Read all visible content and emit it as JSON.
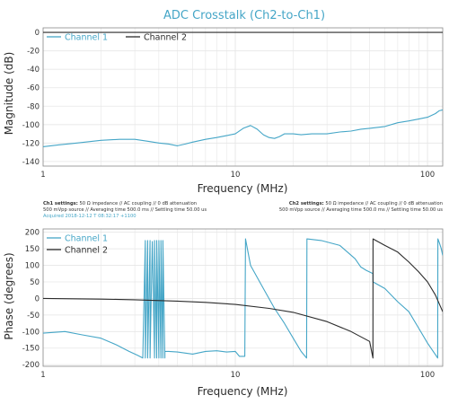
{
  "colors": {
    "channel1": "#45a6c7",
    "channel2": "#2b2b2b",
    "grid": "#e6e6e6",
    "axis": "#8a8a8a",
    "title": "#45a6c7"
  },
  "settings": {
    "ch1_label": "Ch1 settings:",
    "ch1_line1": "50 Ω impedance  //  AC coupling  //  0 dB attenuation",
    "ch1_line2": "500 mVpp source  //  Averaging time 500.0 ms  //  Settling time 50.00 us",
    "ch1_line3": "Acquired 2018-12-12 T 08:32:17 +1100",
    "ch2_label": "Ch2 settings:",
    "ch2_line1": "50 Ω impedance  //  AC coupling  //  0 dB attenuation",
    "ch2_line2": "500 mVpp source  //  Averaging time 500.0 ms  //  Settling time 50.00 us"
  },
  "chart_data": [
    {
      "type": "line",
      "title": "ADC Crosstalk (Ch2-to-Ch1)",
      "xlabel": "Frequency (MHz)",
      "ylabel": "Magnitude (dB)",
      "xscale": "log",
      "xlim": [
        1,
        120
      ],
      "ylim": [
        -145,
        5
      ],
      "xticks": [
        1,
        10,
        100
      ],
      "xtick_labels": [
        "1",
        "10",
        "100"
      ],
      "yticks": [
        0,
        -20,
        -40,
        -60,
        -80,
        -100,
        -120,
        -140
      ],
      "ytick_labels": [
        "0",
        "-20",
        "-40",
        "-60",
        "-80",
        "-100",
        "-120",
        "-140"
      ],
      "grid": true,
      "legend_position": "top-left",
      "series": [
        {
          "name": "Channel 1",
          "color": "#45a6c7",
          "x": [
            1,
            1.2,
            1.5,
            2,
            2.5,
            3,
            3.5,
            4,
            4.5,
            5,
            5.5,
            6,
            7,
            8,
            9,
            10,
            11,
            12,
            13,
            14,
            15,
            16,
            17,
            18,
            20,
            22,
            25,
            30,
            35,
            40,
            45,
            50,
            60,
            70,
            80,
            90,
            100,
            110,
            115,
            120
          ],
          "y": [
            -124,
            -122,
            -120,
            -117,
            -116,
            -116,
            -118,
            -120,
            -121,
            -123,
            -121,
            -119,
            -116,
            -114,
            -112,
            -110,
            -104,
            -101,
            -105,
            -111,
            -114,
            -115,
            -113,
            -110,
            -110,
            -111,
            -110,
            -110,
            -108,
            -107,
            -105,
            -104,
            -102,
            -98,
            -96,
            -94,
            -92,
            -88,
            -85,
            -84
          ]
        },
        {
          "name": "Channel 2",
          "color": "#2b2b2b",
          "x": [
            1,
            120
          ],
          "y": [
            0,
            0
          ]
        }
      ]
    },
    {
      "type": "line",
      "title": "",
      "xlabel": "Frequency (MHz)",
      "ylabel": "Phase (degrees)",
      "xscale": "log",
      "xlim": [
        1,
        120
      ],
      "ylim": [
        -205,
        210
      ],
      "xticks": [
        1,
        10,
        100
      ],
      "xtick_labels": [
        "1",
        "10",
        "100"
      ],
      "yticks": [
        200,
        150,
        100,
        50,
        0,
        -50,
        -100,
        -150,
        -200
      ],
      "ytick_labels": [
        "200",
        "150",
        "100",
        "50",
        "0",
        "-50",
        "-100",
        "-150",
        "-200"
      ],
      "grid": true,
      "legend_position": "top-left",
      "series": [
        {
          "name": "Channel 1",
          "color": "#45a6c7",
          "x": [
            1,
            1.3,
            1.6,
            2,
            2.4,
            2.8,
            3.1,
            3.3,
            3.4,
            3.4,
            3.5,
            3.5,
            3.6,
            3.6,
            3.7,
            3.8,
            3.8,
            3.9,
            3.9,
            4.0,
            4.0,
            4.1,
            4.1,
            4.2,
            4.2,
            4.3,
            4.3,
            4.5,
            5,
            6,
            7,
            8,
            9,
            10,
            10.5,
            11.2,
            11.3,
            12,
            14,
            16,
            18,
            20,
            22,
            23.5,
            23.6,
            28,
            35,
            42,
            45,
            48,
            52,
            52.1,
            60,
            70,
            80,
            90,
            100,
            110,
            113,
            113.2,
            115,
            118,
            120
          ],
          "y": [
            -105,
            -100,
            -110,
            -120,
            -140,
            -160,
            -172,
            -180,
            175,
            -180,
            175,
            -180,
            175,
            -180,
            172,
            -180,
            175,
            -180,
            175,
            -180,
            175,
            -180,
            175,
            -180,
            175,
            -180,
            -160,
            -160,
            -162,
            -168,
            -160,
            -158,
            -162,
            -160,
            -175,
            -175,
            180,
            100,
            30,
            -30,
            -75,
            -120,
            -160,
            -180,
            180,
            175,
            160,
            120,
            95,
            85,
            75,
            50,
            30,
            -10,
            -40,
            -90,
            -135,
            -170,
            -180,
            180,
            170,
            150,
            130
          ]
        },
        {
          "name": "Channel 2",
          "color": "#2b2b2b",
          "x": [
            1,
            2,
            3,
            5,
            7,
            10,
            15,
            20,
            30,
            40,
            50,
            52,
            52.1,
            60,
            70,
            80,
            90,
            100,
            110,
            120
          ],
          "y": [
            0,
            -2,
            -4,
            -8,
            -12,
            -18,
            -30,
            -42,
            -70,
            -100,
            -130,
            -180,
            180,
            160,
            140,
            110,
            80,
            50,
            10,
            -40
          ]
        }
      ]
    }
  ]
}
